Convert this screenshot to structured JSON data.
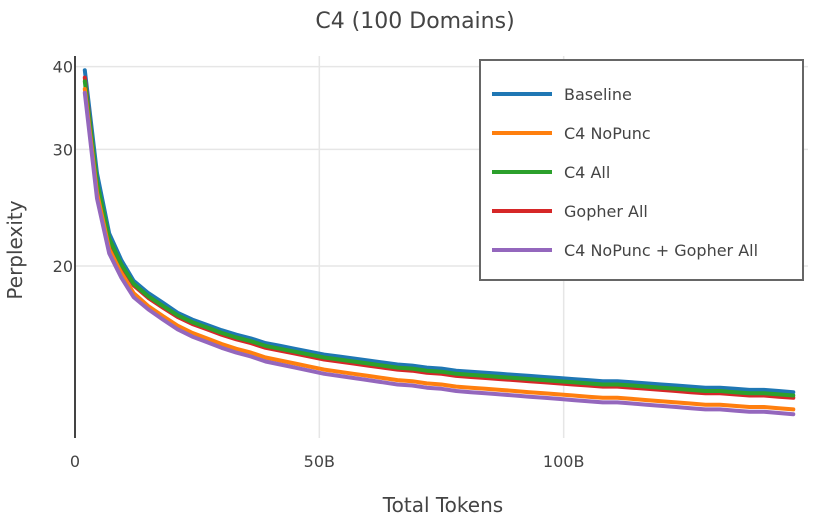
{
  "chart_data": {
    "type": "line",
    "title": "C4 (100 Domains)",
    "xlabel": "Total Tokens",
    "ylabel": "Perplexity",
    "xlim": [
      0,
      150000000000
    ],
    "ylim": [
      11,
      41.5
    ],
    "y_scale": "log",
    "x_ticks": [
      {
        "value": 0,
        "label": "0"
      },
      {
        "value": 50000000000,
        "label": "50B"
      },
      {
        "value": 100000000000,
        "label": "100B"
      }
    ],
    "y_ticks": [
      {
        "value": 20,
        "label": "20"
      },
      {
        "value": 30,
        "label": "30"
      },
      {
        "value": 40,
        "label": "40"
      }
    ],
    "grid": true,
    "legend_position": "top-right",
    "x": [
      2000000000,
      4500000000,
      7000000000,
      9500000000,
      12000000000,
      15000000000,
      18000000000,
      21000000000,
      24000000000,
      27000000000,
      30000000000,
      33000000000,
      36000000000,
      39000000000,
      42000000000,
      45000000000,
      48000000000,
      51000000000,
      54000000000,
      57000000000,
      60000000000,
      63000000000,
      66000000000,
      69000000000,
      72000000000,
      75000000000,
      78000000000,
      81000000000,
      84000000000,
      87000000000,
      90000000000,
      93000000000,
      96000000000,
      99000000000,
      102000000000,
      105000000000,
      108000000000,
      111000000000,
      114000000000,
      117000000000,
      120000000000,
      123000000000,
      126000000000,
      129000000000,
      132000000000,
      135000000000,
      138000000000,
      141000000000,
      144000000000,
      147000000000
    ],
    "series": [
      {
        "name": "Baseline",
        "color": "#1f77b4",
        "values": [
          39.5,
          27.6,
          22.4,
          20.4,
          19.0,
          18.2,
          17.6,
          17.0,
          16.6,
          16.3,
          16.0,
          15.75,
          15.55,
          15.3,
          15.15,
          15.0,
          14.85,
          14.7,
          14.6,
          14.5,
          14.4,
          14.3,
          14.2,
          14.15,
          14.05,
          14.0,
          13.9,
          13.85,
          13.8,
          13.75,
          13.7,
          13.65,
          13.6,
          13.55,
          13.5,
          13.45,
          13.4,
          13.4,
          13.35,
          13.3,
          13.25,
          13.2,
          13.15,
          13.1,
          13.1,
          13.05,
          13.0,
          13.0,
          12.95,
          12.9
        ]
      },
      {
        "name": "Gopher All",
        "color": "#d62728",
        "values": [
          38.5,
          26.5,
          21.8,
          20.0,
          18.7,
          17.9,
          17.3,
          16.75,
          16.35,
          16.05,
          15.75,
          15.5,
          15.3,
          15.05,
          14.9,
          14.75,
          14.6,
          14.45,
          14.35,
          14.25,
          14.15,
          14.05,
          13.95,
          13.9,
          13.8,
          13.75,
          13.65,
          13.6,
          13.55,
          13.5,
          13.45,
          13.4,
          13.35,
          13.3,
          13.25,
          13.2,
          13.15,
          13.15,
          13.1,
          13.05,
          13.0,
          12.95,
          12.9,
          12.85,
          12.85,
          12.8,
          12.75,
          12.75,
          12.7,
          12.65
        ]
      },
      {
        "name": "C4 All",
        "color": "#2ca02c",
        "values": [
          38.0,
          26.8,
          22.0,
          20.1,
          18.8,
          18.0,
          17.4,
          16.85,
          16.45,
          16.15,
          15.85,
          15.6,
          15.4,
          15.15,
          15.0,
          14.85,
          14.7,
          14.55,
          14.45,
          14.35,
          14.25,
          14.15,
          14.05,
          14.0,
          13.9,
          13.85,
          13.75,
          13.7,
          13.65,
          13.6,
          13.55,
          13.5,
          13.45,
          13.4,
          13.35,
          13.3,
          13.25,
          13.25,
          13.2,
          13.15,
          13.1,
          13.05,
          13.0,
          12.95,
          12.95,
          12.9,
          12.85,
          12.85,
          12.8,
          12.75
        ]
      },
      {
        "name": "C4 NoPunc",
        "color": "#ff7f0e",
        "values": [
          37.0,
          25.8,
          21.2,
          19.5,
          18.2,
          17.4,
          16.8,
          16.25,
          15.85,
          15.55,
          15.25,
          15.0,
          14.8,
          14.55,
          14.4,
          14.25,
          14.1,
          13.95,
          13.85,
          13.75,
          13.65,
          13.55,
          13.45,
          13.4,
          13.3,
          13.25,
          13.15,
          13.1,
          13.05,
          13.0,
          12.95,
          12.9,
          12.85,
          12.8,
          12.75,
          12.7,
          12.65,
          12.65,
          12.6,
          12.55,
          12.5,
          12.45,
          12.4,
          12.35,
          12.35,
          12.3,
          12.25,
          12.25,
          12.2,
          12.15
        ]
      },
      {
        "name": "C4 NoPunc + Gopher All",
        "color": "#9467bd",
        "values": [
          36.5,
          25.3,
          20.9,
          19.2,
          17.95,
          17.2,
          16.6,
          16.05,
          15.65,
          15.35,
          15.05,
          14.8,
          14.6,
          14.35,
          14.2,
          14.05,
          13.9,
          13.75,
          13.65,
          13.55,
          13.45,
          13.35,
          13.25,
          13.2,
          13.1,
          13.05,
          12.95,
          12.9,
          12.85,
          12.8,
          12.75,
          12.7,
          12.65,
          12.6,
          12.55,
          12.5,
          12.45,
          12.45,
          12.4,
          12.35,
          12.3,
          12.25,
          12.2,
          12.15,
          12.15,
          12.1,
          12.05,
          12.05,
          12.0,
          11.95
        ]
      }
    ],
    "legend_order": [
      "Baseline",
      "C4 NoPunc",
      "C4 All",
      "Gopher All",
      "C4 NoPunc + Gopher All"
    ]
  }
}
